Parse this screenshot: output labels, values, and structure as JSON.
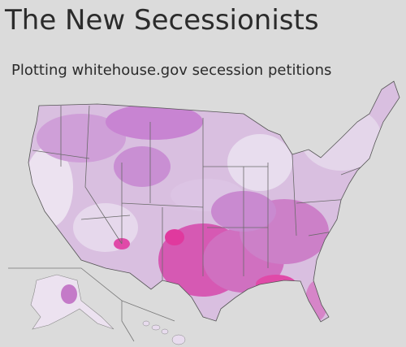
{
  "header": {
    "title": "The New Secessionists",
    "subtitle": "Plotting whitehouse.gov secession petitions"
  }
}
